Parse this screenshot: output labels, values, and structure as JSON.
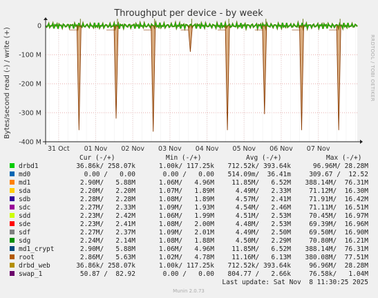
{
  "chart_data": {
    "type": "line",
    "title": "Throughput per device - by week",
    "ylabel": "Bytes/second read (-) / write (+)",
    "ylim": [
      -400000000,
      10000000
    ],
    "yticks": [
      {
        "value": 0,
        "label": "0"
      },
      {
        "value": -100000000,
        "label": "-100 M"
      },
      {
        "value": -200000000,
        "label": "-200 M"
      },
      {
        "value": -300000000,
        "label": "-300 M"
      },
      {
        "value": -400000000,
        "label": "-400 M"
      }
    ],
    "xlim": [
      0,
      8.4
    ],
    "xticks": [
      {
        "value": 0.35,
        "label": "31 Oct"
      },
      {
        "value": 1.35,
        "label": "01 Nov"
      },
      {
        "value": 2.35,
        "label": "02 Nov"
      },
      {
        "value": 3.35,
        "label": "03 Nov"
      },
      {
        "value": 4.35,
        "label": "04 Nov"
      },
      {
        "value": 5.35,
        "label": "05 Nov"
      },
      {
        "value": 6.35,
        "label": "06 Nov"
      },
      {
        "value": 7.35,
        "label": "07 Nov"
      }
    ],
    "grid": true,
    "read_spikes": [
      {
        "x": 0.9,
        "y": -360000000
      },
      {
        "x": 1.9,
        "y": -320000000
      },
      {
        "x": 2.9,
        "y": -365000000
      },
      {
        "x": 3.9,
        "y": -90000000
      },
      {
        "x": 4.9,
        "y": -360000000
      },
      {
        "x": 5.9,
        "y": -305000000
      },
      {
        "x": 6.9,
        "y": -360000000
      },
      {
        "x": 7.9,
        "y": -360000000
      }
    ],
    "sidebar_text": "RRDTOOL / TOBI OETIKER",
    "columns": [
      "Cur (-/+)",
      "Min (-/+)",
      "Avg (-/+)",
      "Max (-/+)"
    ],
    "series": [
      {
        "name": "drbd1",
        "color": "#00cc00",
        "cur": "36.86k/ 258.07k",
        "min": "1.00k/ 117.25k",
        "avg": "712.52k/ 393.64k",
        "max": "96.96M/ 28.28M"
      },
      {
        "name": "md0",
        "color": "#0066b3",
        "cur": "0.00 /   0.00",
        "min": "0.00 /   0.00",
        "avg": "514.09m/  36.41m",
        "max": "309.67 /  12.52"
      },
      {
        "name": "md1",
        "color": "#ff8000",
        "cur": "2.90M/   5.88M",
        "min": "1.06M/   4.96M",
        "avg": "11.85M/   6.52M",
        "max": "388.14M/  76.31M"
      },
      {
        "name": "sda",
        "color": "#ffcc00",
        "cur": "2.20M/   2.20M",
        "min": "1.07M/   1.89M",
        "avg": "4.49M/   2.33M",
        "max": "71.12M/  16.30M"
      },
      {
        "name": "sdb",
        "color": "#330099",
        "cur": "2.28M/   2.28M",
        "min": "1.08M/   1.89M",
        "avg": "4.57M/   2.41M",
        "max": "71.91M/  16.42M"
      },
      {
        "name": "sdc",
        "color": "#990099",
        "cur": "2.27M/   2.33M",
        "min": "1.09M/   1.93M",
        "avg": "4.54M/   2.46M",
        "max": "71.11M/  16.51M"
      },
      {
        "name": "sdd",
        "color": "#ccff00",
        "cur": "2.23M/   2.42M",
        "min": "1.06M/   1.99M",
        "avg": "4.51M/   2.53M",
        "max": "70.45M/  16.97M"
      },
      {
        "name": "sde",
        "color": "#ff0000",
        "cur": "2.23M/   2.41M",
        "min": "1.08M/   2.00M",
        "avg": "4.48M/   2.53M",
        "max": "69.39M/  16.96M"
      },
      {
        "name": "sdf",
        "color": "#808080",
        "cur": "2.27M/   2.37M",
        "min": "1.09M/   2.01M",
        "avg": "4.49M/   2.50M",
        "max": "69.50M/  16.90M"
      },
      {
        "name": "sdg",
        "color": "#008f00",
        "cur": "2.24M/   2.14M",
        "min": "1.08M/   1.88M",
        "avg": "4.50M/   2.29M",
        "max": "70.80M/  16.21M"
      },
      {
        "name": "md1_crypt",
        "color": "#00487d",
        "cur": "2.90M/   5.88M",
        "min": "1.06M/   4.96M",
        "avg": "11.85M/   6.52M",
        "max": "388.14M/  76.31M"
      },
      {
        "name": "root",
        "color": "#b35a00",
        "cur": "2.86M/   5.63M",
        "min": "1.02M/   4.78M",
        "avg": "11.16M/   6.13M",
        "max": "380.08M/  77.51M"
      },
      {
        "name": "drbd_web",
        "color": "#b38f00",
        "cur": "36.86k/ 258.07k",
        "min": "1.00k/ 117.25k",
        "avg": "712.52k/ 393.64k",
        "max": "96.96M/  28.28M"
      },
      {
        "name": "swap_1",
        "color": "#6b006b",
        "cur": "50.87 /  82.92",
        "min": "0.00 /   0.00",
        "avg": "804.77 /   2.66k",
        "max": "76.58k/   1.04M"
      }
    ],
    "last_update": "Last update: Sat Nov  8 11:30:25 2025",
    "footer": "Munin 2.0.73"
  }
}
